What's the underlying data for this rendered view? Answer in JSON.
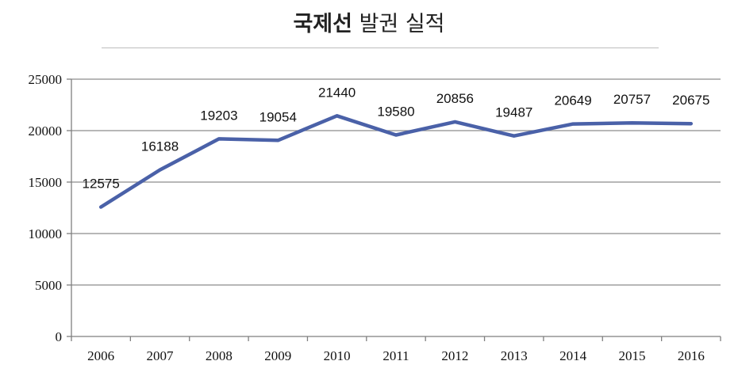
{
  "chart_data": {
    "type": "line",
    "title_bold": "국제선",
    "title_rest": "발권 실적",
    "categories": [
      "2006",
      "2007",
      "2008",
      "2009",
      "2010",
      "2011",
      "2012",
      "2013",
      "2014",
      "2015",
      "2016"
    ],
    "series": [
      {
        "values": [
          12575,
          16188,
          19203,
          19054,
          21440,
          19580,
          20856,
          19487,
          20649,
          20757,
          20675
        ]
      }
    ],
    "ylim": [
      0,
      25000
    ],
    "yticks": [
      0,
      5000,
      10000,
      15000,
      20000,
      25000
    ],
    "ytick_labels": [
      "0",
      "5000",
      "10000",
      "15000",
      "20000",
      "25000"
    ],
    "grid": true,
    "legend": "none",
    "line_color": "#4a61a8",
    "grid_color": "#8c8c8c",
    "axis_color": "#7f7f7f"
  }
}
